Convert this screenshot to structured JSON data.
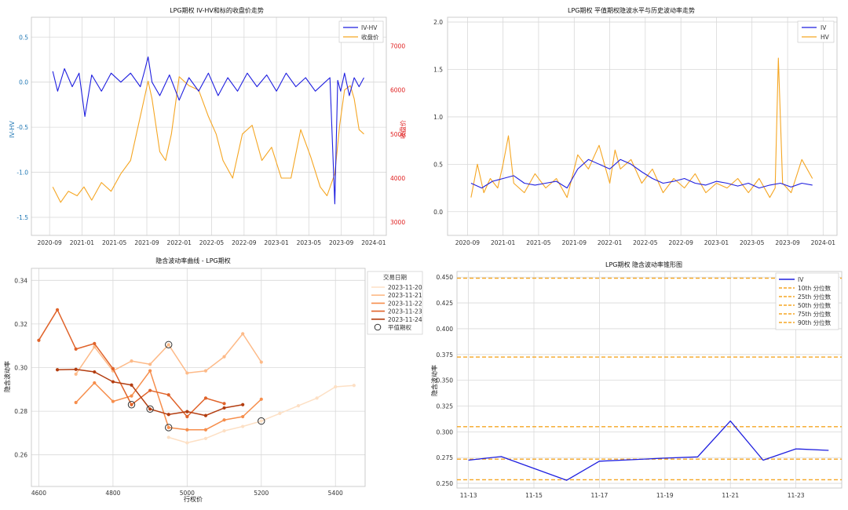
{
  "charts": [
    {
      "type": "line",
      "title": "LPG期权 IV-HV和标的收盘价走势",
      "ylabel": "IV-HV",
      "y2label": "收盘价",
      "ylim": [
        -1.7,
        0.72
      ],
      "y2lim": [
        2700,
        7650
      ],
      "yticks": [
        "0.5",
        "0.0",
        "-0.5",
        "-1.0",
        "-1.5"
      ],
      "yticks_values": [
        0.5,
        0.0,
        -0.5,
        -1.0,
        -1.5
      ],
      "y2ticks": [
        "7000",
        "6000",
        "5000",
        "4000",
        "3000"
      ],
      "y2ticks_values": [
        7000,
        6000,
        5000,
        4000,
        3000
      ],
      "xticks": [
        "2020-09",
        "2021-01",
        "2021-05",
        "2021-09",
        "2022-01",
        "2022-05",
        "2022-09",
        "2023-01",
        "2023-05",
        "2023-09",
        "2024-01"
      ],
      "xlim": [
        2020.48,
        2024.13
      ],
      "xticks_values": [
        2020.667,
        2021.0,
        2021.333,
        2021.667,
        2022.0,
        2022.333,
        2022.667,
        2023.0,
        2023.333,
        2023.667,
        2024.0
      ],
      "legend": [
        "IV-HV",
        "收盘价"
      ],
      "colors": {
        "primary": "#1f1fdf",
        "secondary": "#f5a623",
        "axis": "#1f77b4",
        "axis2": "#e02020"
      },
      "series": [
        {
          "name": "IV-HV",
          "axis": "y",
          "x": [
            2020.7,
            2020.75,
            2020.82,
            2020.9,
            2020.97,
            2021.03,
            2021.1,
            2021.2,
            2021.3,
            2021.4,
            2021.5,
            2021.6,
            2021.65,
            2021.68,
            2021.72,
            2021.8,
            2021.9,
            2022.0,
            2022.1,
            2022.2,
            2022.3,
            2022.4,
            2022.5,
            2022.6,
            2022.7,
            2022.8,
            2022.9,
            2023.0,
            2023.1,
            2023.2,
            2023.3,
            2023.4,
            2023.5,
            2023.55,
            2023.6,
            2023.63,
            2023.66,
            2023.7,
            2023.75,
            2023.8,
            2023.85,
            2023.9
          ],
          "values": [
            0.12,
            -0.1,
            0.15,
            -0.05,
            0.1,
            -0.38,
            0.08,
            -0.1,
            0.1,
            0.0,
            0.1,
            -0.05,
            0.15,
            0.28,
            0.0,
            -0.15,
            0.08,
            -0.2,
            0.05,
            -0.1,
            0.1,
            -0.15,
            0.05,
            -0.1,
            0.1,
            -0.05,
            0.08,
            -0.1,
            0.1,
            -0.05,
            0.05,
            -0.1,
            0.0,
            0.05,
            -1.35,
            0.02,
            -0.1,
            0.1,
            -0.15,
            0.05,
            -0.05,
            0.05
          ]
        },
        {
          "name": "收盘价",
          "axis": "y2",
          "x": [
            2020.7,
            2020.78,
            2020.86,
            2020.95,
            2021.02,
            2021.1,
            2021.2,
            2021.3,
            2021.4,
            2021.5,
            2021.58,
            2021.62,
            2021.68,
            2021.72,
            2021.8,
            2021.86,
            2021.92,
            2022.0,
            2022.1,
            2022.2,
            2022.3,
            2022.38,
            2022.45,
            2022.55,
            2022.65,
            2022.75,
            2022.85,
            2022.95,
            2023.05,
            2023.15,
            2023.25,
            2023.35,
            2023.45,
            2023.52,
            2023.6,
            2023.65,
            2023.7,
            2023.76,
            2023.8,
            2023.85,
            2023.9
          ],
          "values": [
            3800,
            3450,
            3700,
            3600,
            3800,
            3500,
            3900,
            3700,
            4100,
            4400,
            5200,
            5600,
            6200,
            5800,
            4600,
            4400,
            5000,
            6300,
            6100,
            6000,
            5400,
            5000,
            4400,
            4000,
            5000,
            5200,
            4400,
            4700,
            4000,
            4000,
            5100,
            4500,
            3800,
            3600,
            4100,
            5200,
            6000,
            6100,
            5800,
            5100,
            5000
          ]
        }
      ]
    },
    {
      "type": "line",
      "title": "LPG期权 平值期权隐波水平与历史波动率走势",
      "ylim": [
        -0.25,
        2.05
      ],
      "yticks": [
        "2.0",
        "1.5",
        "1.0",
        "0.5",
        "0.0"
      ],
      "yticks_values": [
        2.0,
        1.5,
        1.0,
        0.5,
        0.0
      ],
      "xticks": [
        "2020-09",
        "2021-01",
        "2021-05",
        "2021-09",
        "2022-01",
        "2022-05",
        "2022-09",
        "2023-01",
        "2023-05",
        "2023-09",
        "2024-01"
      ],
      "xlim": [
        2020.48,
        2024.13
      ],
      "xticks_values": [
        2020.667,
        2021.0,
        2021.333,
        2021.667,
        2022.0,
        2022.333,
        2022.667,
        2023.0,
        2023.333,
        2023.667,
        2024.0
      ],
      "legend": [
        "IV",
        "HV"
      ],
      "colors": {
        "primary": "#1f1fdf",
        "secondary": "#f5a623"
      },
      "series": [
        {
          "name": "IV",
          "x": [
            2020.7,
            2020.8,
            2020.9,
            2021.0,
            2021.1,
            2021.2,
            2021.3,
            2021.4,
            2021.5,
            2021.6,
            2021.7,
            2021.8,
            2021.9,
            2022.0,
            2022.1,
            2022.2,
            2022.3,
            2022.4,
            2022.5,
            2022.6,
            2022.7,
            2022.8,
            2022.9,
            2023.0,
            2023.1,
            2023.2,
            2023.3,
            2023.4,
            2023.5,
            2023.6,
            2023.7,
            2023.8,
            2023.9
          ],
          "values": [
            0.3,
            0.25,
            0.32,
            0.35,
            0.38,
            0.3,
            0.28,
            0.3,
            0.32,
            0.25,
            0.45,
            0.55,
            0.5,
            0.45,
            0.55,
            0.5,
            0.42,
            0.35,
            0.3,
            0.32,
            0.35,
            0.3,
            0.28,
            0.32,
            0.3,
            0.27,
            0.3,
            0.25,
            0.28,
            0.3,
            0.26,
            0.3,
            0.28
          ]
        },
        {
          "name": "HV",
          "x": [
            2020.7,
            2020.76,
            2020.82,
            2020.88,
            2020.95,
            2021.0,
            2021.05,
            2021.1,
            2021.2,
            2021.3,
            2021.4,
            2021.5,
            2021.6,
            2021.7,
            2021.8,
            2021.9,
            2022.0,
            2022.05,
            2022.1,
            2022.2,
            2022.3,
            2022.4,
            2022.5,
            2022.6,
            2022.7,
            2022.8,
            2022.9,
            2023.0,
            2023.1,
            2023.2,
            2023.3,
            2023.4,
            2023.5,
            2023.55,
            2023.58,
            2023.62,
            2023.7,
            2023.8,
            2023.9
          ],
          "values": [
            0.15,
            0.5,
            0.2,
            0.35,
            0.25,
            0.5,
            0.8,
            0.3,
            0.2,
            0.4,
            0.25,
            0.35,
            0.15,
            0.6,
            0.45,
            0.7,
            0.3,
            0.65,
            0.45,
            0.55,
            0.3,
            0.45,
            0.2,
            0.35,
            0.25,
            0.4,
            0.2,
            0.3,
            0.25,
            0.35,
            0.2,
            0.35,
            0.15,
            0.25,
            1.62,
            0.3,
            0.2,
            0.55,
            0.35
          ]
        }
      ]
    },
    {
      "type": "line",
      "title": "隐含波动率曲线 - LPG期权",
      "xlabel": "行权价",
      "ylabel": "隐含波动率",
      "xlim": [
        4580,
        5480
      ],
      "ylim": [
        0.2455,
        0.3455
      ],
      "xticks": [
        "4600",
        "4800",
        "5000",
        "5200",
        "5400"
      ],
      "xticks_values": [
        4600,
        4800,
        5000,
        5200,
        5400
      ],
      "yticks": [
        "0.34",
        "0.32",
        "0.30",
        "0.28",
        "0.26"
      ],
      "yticks_values": [
        0.34,
        0.32,
        0.3,
        0.28,
        0.26
      ],
      "legend_title": "交易日期",
      "legend": [
        "2023-11-20",
        "2023-11-21",
        "2023-11-22",
        "2023-11-23",
        "2023-11-24",
        "平值期权"
      ],
      "series": [
        {
          "name": "2023-11-20",
          "color": "#fde0c5",
          "x": [
            4950,
            5000,
            5050,
            5100,
            5150,
            5200,
            5250,
            5300,
            5350,
            5400,
            5450
          ],
          "values": [
            0.268,
            0.2655,
            0.2675,
            0.271,
            0.273,
            0.2755,
            0.279,
            0.2825,
            0.286,
            0.2912,
            0.2918
          ]
        },
        {
          "name": "2023-11-21",
          "color": "#fdba88",
          "x": [
            4700,
            4750,
            4800,
            4850,
            4900,
            4950,
            5000,
            5050,
            5100,
            5150,
            5200
          ],
          "values": [
            0.297,
            0.3095,
            0.2985,
            0.303,
            0.3015,
            0.3105,
            0.2975,
            0.2985,
            0.305,
            0.3155,
            0.3025
          ]
        },
        {
          "name": "2023-11-22",
          "color": "#f68e4c",
          "x": [
            4700,
            4750,
            4800,
            4850,
            4900,
            4950,
            5000,
            5050,
            5100,
            5150,
            5200
          ],
          "values": [
            0.284,
            0.293,
            0.2845,
            0.287,
            0.2985,
            0.2725,
            0.2715,
            0.2715,
            0.276,
            0.2775,
            0.2855
          ]
        },
        {
          "name": "2023-11-23",
          "color": "#e0632a",
          "x": [
            4600,
            4650,
            4700,
            4750,
            4800,
            4850,
            4900,
            4950,
            5000,
            5050,
            5100
          ],
          "values": [
            0.3125,
            0.3265,
            0.3085,
            0.311,
            0.2995,
            0.283,
            0.2895,
            0.2875,
            0.2775,
            0.286,
            0.2835
          ]
        },
        {
          "name": "2023-11-24",
          "color": "#b33d10",
          "x": [
            4650,
            4700,
            4750,
            4800,
            4850,
            4900,
            4950,
            5000,
            5050,
            5100,
            5150
          ],
          "values": [
            0.299,
            0.2992,
            0.298,
            0.2935,
            0.292,
            0.281,
            0.2785,
            0.2798,
            0.278,
            0.2815,
            0.283
          ]
        }
      ],
      "atm_points": {
        "x": [
          4850,
          4900,
          4950,
          4950,
          5200
        ],
        "values": [
          0.283,
          0.281,
          0.2725,
          0.3105,
          0.2755
        ]
      }
    },
    {
      "type": "line",
      "title": "LPG期权 隐含波动率锥形图",
      "ylabel": "隐含波动率",
      "xlim": [
        -0.35,
        11.4
      ],
      "ylim": [
        0.2455,
        0.4555
      ],
      "xticks": [
        "11-13",
        "11-15",
        "11-17",
        "11-19",
        "11-21",
        "11-23"
      ],
      "xticks_values": [
        0,
        2,
        4,
        6,
        8,
        10
      ],
      "yticks": [
        "0.450",
        "0.425",
        "0.400",
        "0.375",
        "0.350",
        "0.325",
        "0.300",
        "0.275",
        "0.250"
      ],
      "yticks_values": [
        0.45,
        0.425,
        0.4,
        0.375,
        0.35,
        0.325,
        0.3,
        0.275,
        0.25
      ],
      "legend": [
        "IV",
        "10th 分位数",
        "25th 分位数",
        "50th 分位数",
        "75th 分位数",
        "90th 分位数"
      ],
      "colors": {
        "iv": "#1f1fdf",
        "quantile": "#f5a623"
      },
      "series": [
        {
          "name": "IV",
          "x": [
            0,
            1,
            3,
            4,
            5,
            6,
            7,
            8,
            9,
            10,
            11
          ],
          "values": [
            0.2725,
            0.276,
            0.253,
            0.2715,
            0.273,
            0.2745,
            0.2757,
            0.3105,
            0.2725,
            0.2835,
            0.282
          ]
        }
      ],
      "quantiles": [
        0.2535,
        0.2735,
        0.305,
        0.3725,
        0.449
      ]
    }
  ]
}
